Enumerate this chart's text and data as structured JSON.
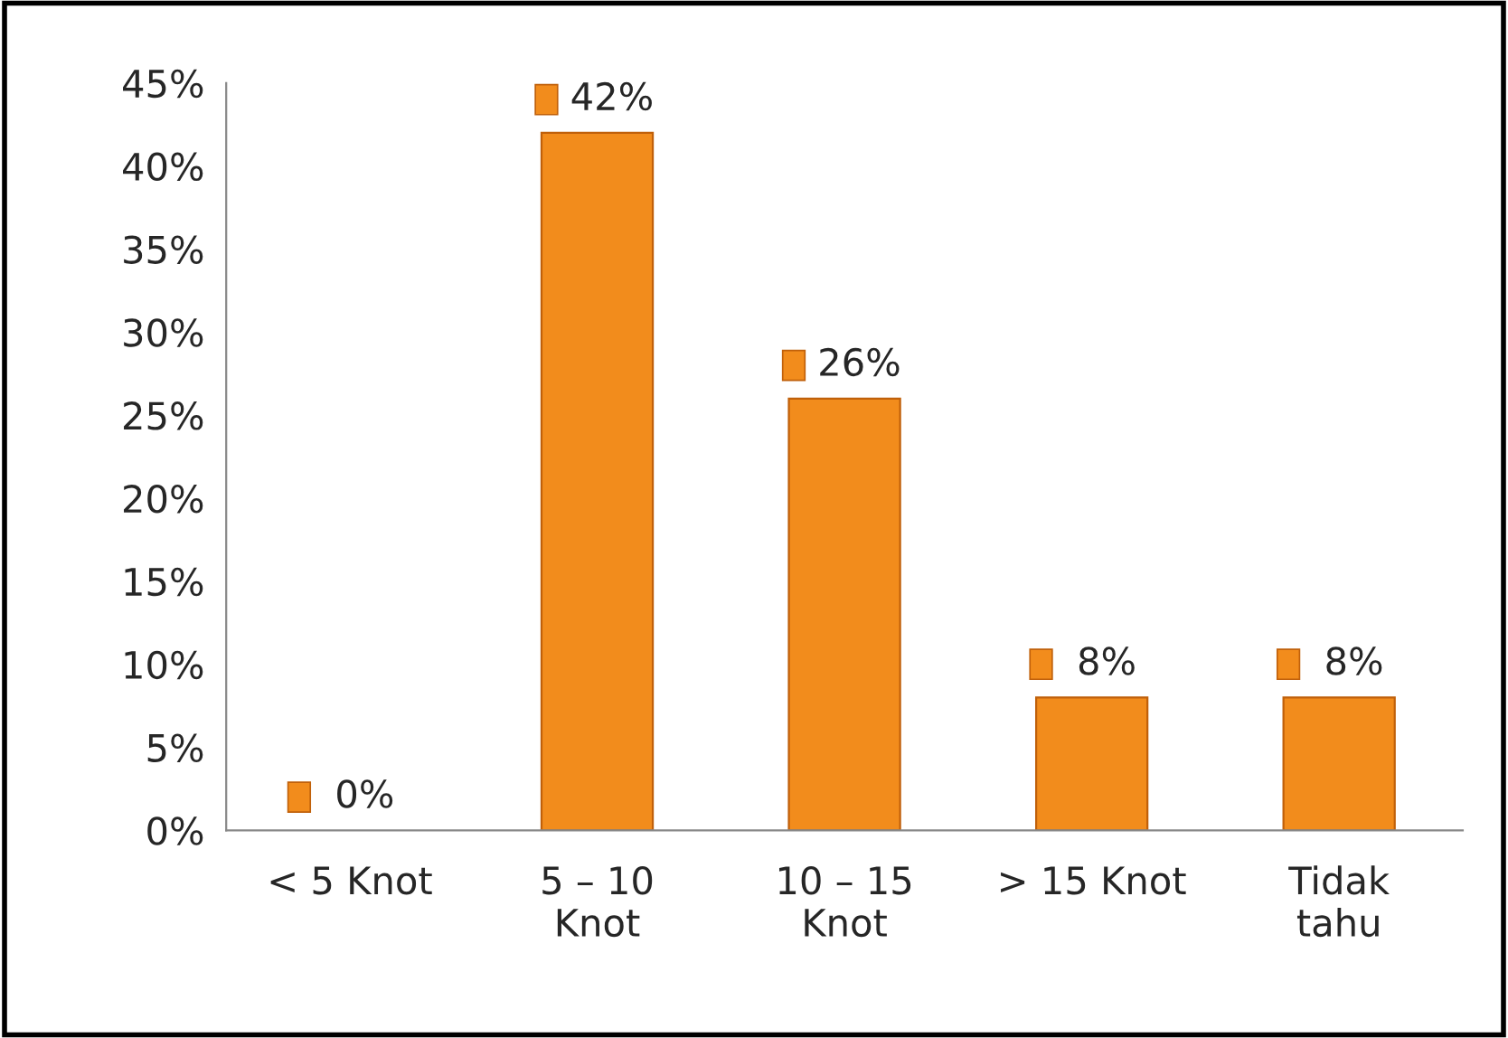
{
  "chart_data": {
    "type": "bar",
    "categories": [
      "< 5 Knot",
      "5 – 10\nKnot",
      "10 – 15\nKnot",
      "> 15 Knot",
      "Tidak\ntahu"
    ],
    "values": [
      0,
      42,
      26,
      8,
      8
    ],
    "value_labels": [
      "0%",
      "42%",
      "26%",
      "8%",
      "8%"
    ],
    "color": "#f28c1c",
    "ylim": [
      0,
      45
    ],
    "yticks": [
      {
        "value": 0,
        "label": "0%"
      },
      {
        "value": 5,
        "label": "5%"
      },
      {
        "value": 10,
        "label": "10%"
      },
      {
        "value": 15,
        "label": "15%"
      },
      {
        "value": 20,
        "label": "20%"
      },
      {
        "value": 25,
        "label": "25%"
      },
      {
        "value": 30,
        "label": "30%"
      },
      {
        "value": 35,
        "label": "35%"
      },
      {
        "value": 40,
        "label": "40%"
      },
      {
        "value": 45,
        "label": "45%"
      }
    ],
    "grid": false,
    "legend": false
  }
}
